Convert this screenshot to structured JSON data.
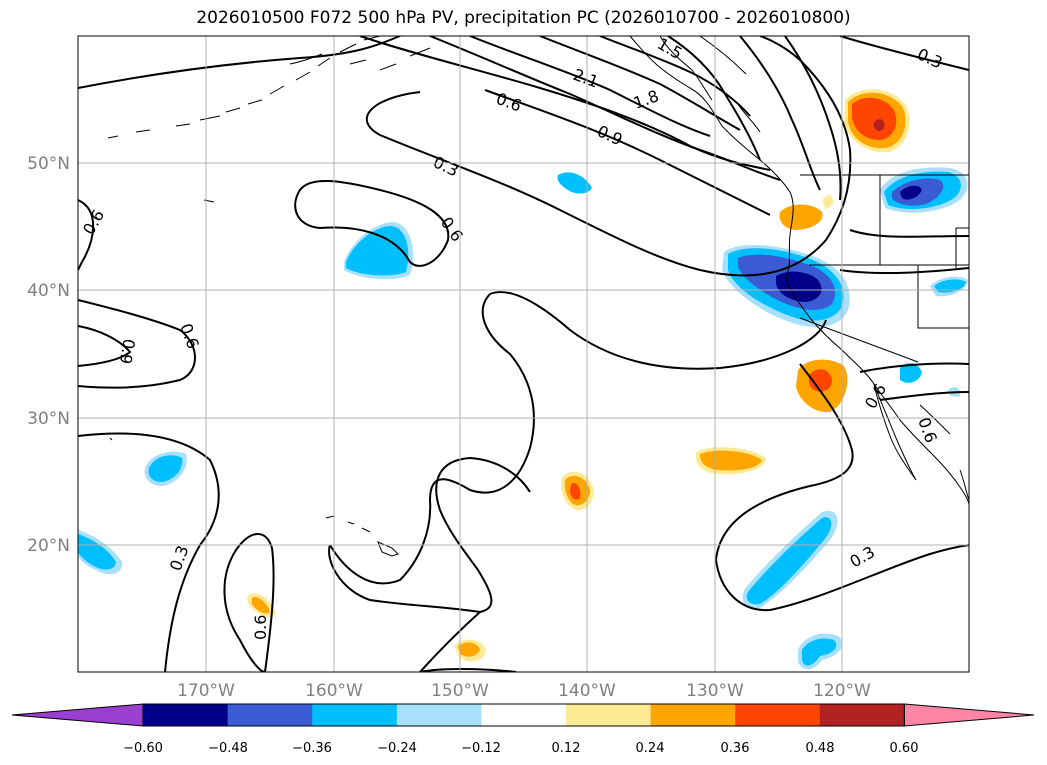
{
  "title": "2026010500 F072 500 hPa PV, precipitation PC (2026010700 - 2026010800)",
  "map": {
    "lat_labels": [
      "50°N",
      "40°N",
      "30°N",
      "20°N"
    ],
    "lon_labels": [
      "170°W",
      "160°W",
      "150°W",
      "140°W",
      "130°W",
      "120°W"
    ],
    "contour_labels": [
      "2.1",
      "1.8",
      "1.5",
      "0.6",
      "0.9",
      "0.3",
      "0.6",
      "0.6",
      "0.9",
      "0.6",
      "0.3",
      "0.6",
      "0.3",
      "0.3",
      "0.6",
      "0.6"
    ]
  },
  "colorbar": {
    "ticks": [
      "−0.60",
      "−0.48",
      "−0.36",
      "−0.24",
      "−0.12",
      "0.12",
      "0.24",
      "0.36",
      "0.48",
      "0.60"
    ],
    "colors": [
      "#9b3fd3",
      "#00008b",
      "#3a5bd3",
      "#00bfff",
      "#a8e0fb",
      "#ffffff",
      "#ffea94",
      "#ffa500",
      "#ff4500",
      "#b22222",
      "#ff85a6"
    ]
  }
}
